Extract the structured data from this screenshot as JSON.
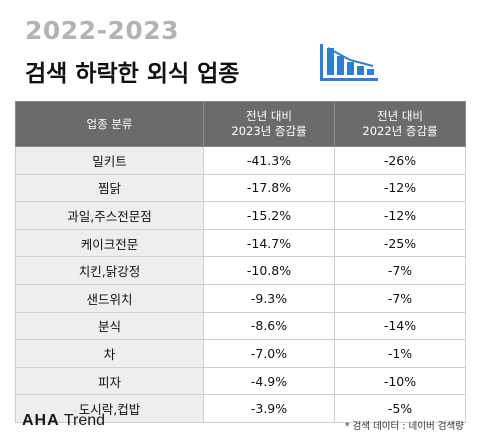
{
  "header": {
    "year": "2022-2023",
    "title": "검색 하락한 외식 업종"
  },
  "table": {
    "headers": [
      {
        "line1": "업종 분류",
        "line2": ""
      },
      {
        "line1": "전년 대비",
        "line2": "2023년 증감률"
      },
      {
        "line1": "전년 대비",
        "line2": "2022년 증감률"
      }
    ],
    "rows": [
      [
        "밀키트",
        "-41.3%",
        "-26%"
      ],
      [
        "찜닭",
        "-17.8%",
        "-12%"
      ],
      [
        "과일,주스전문점",
        "-15.2%",
        "-12%"
      ],
      [
        "케이크전문",
        "-14.7%",
        "-25%"
      ],
      [
        "치킨,닭강정",
        "-10.8%",
        "-7%"
      ],
      [
        "샌드위치",
        "-9.3%",
        "-7%"
      ],
      [
        "분식",
        "-8.6%",
        "-14%"
      ],
      [
        "차",
        "-7.0%",
        "-1%"
      ],
      [
        "피자",
        "-4.9%",
        "-10%"
      ],
      [
        "도시락,컵밥",
        "-3.9%",
        "-5%"
      ]
    ]
  },
  "footer": {
    "brand_bold": "AHA",
    "brand_light": "Trend",
    "source": "* 검색 데이터 : 네이버 검색량"
  },
  "colors": {
    "header_bg": "#6b6b6b",
    "category_bg": "#eeeeee",
    "icon_blue": "#2f7fd1",
    "year_gray": "#b3b3b3"
  }
}
